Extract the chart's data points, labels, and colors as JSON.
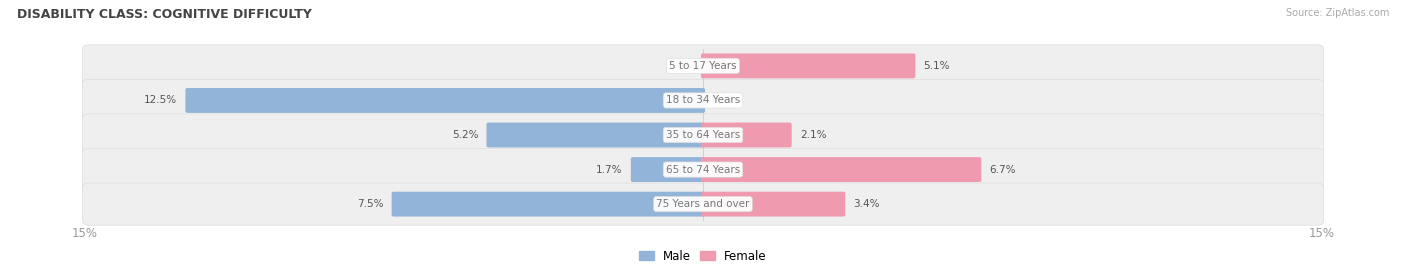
{
  "title": "DISABILITY CLASS: COGNITIVE DIFFICULTY",
  "source": "Source: ZipAtlas.com",
  "categories": [
    "5 to 17 Years",
    "18 to 34 Years",
    "35 to 64 Years",
    "65 to 74 Years",
    "75 Years and over"
  ],
  "male_values": [
    0.0,
    12.5,
    5.2,
    1.7,
    7.5
  ],
  "female_values": [
    5.1,
    0.0,
    2.1,
    6.7,
    3.4
  ],
  "male_color": "#92b4d8",
  "female_color": "#f09ab0",
  "axis_max": 15.0,
  "row_bg_color": "#e8e8e8",
  "row_inner_color": "#f5f5f5",
  "label_color": "#555555",
  "title_color": "#444444",
  "center_label_color": "#777777",
  "axis_label_color": "#999999",
  "legend_male": "Male",
  "legend_female": "Female"
}
